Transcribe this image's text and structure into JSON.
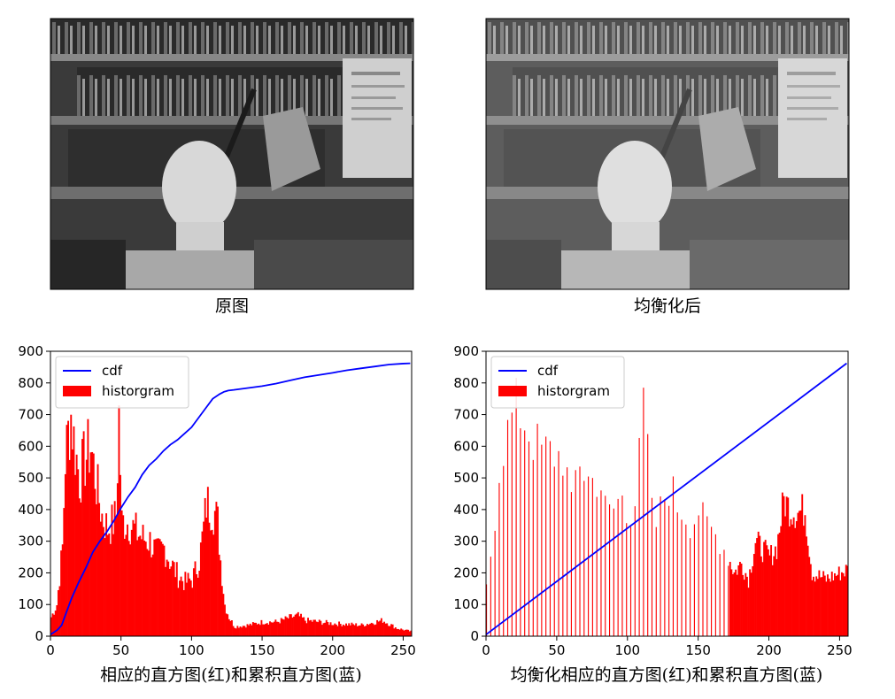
{
  "images": [
    {
      "caption": "原图",
      "note": "grayscale photo of office shelf with a plaster head and desk lamp"
    },
    {
      "caption": "均衡化后",
      "note": "histogram-equalized version of the same photo"
    }
  ],
  "colors": {
    "hist": "#ff0000",
    "cdf": "#0000ff",
    "axis": "#000000"
  },
  "chart_data": [
    {
      "type": "bar",
      "title": "",
      "xlabel": "相应的直方图(红)和累积直方图(蓝)",
      "ylabel": "",
      "xlim": [
        0,
        256
      ],
      "ylim": [
        0,
        900
      ],
      "xticks": [
        "0",
        "50",
        "100",
        "150",
        "200",
        "250"
      ],
      "yticks": [
        "0",
        "100",
        "200",
        "300",
        "400",
        "500",
        "600",
        "700",
        "800",
        "900"
      ],
      "legend": [
        "cdf",
        "historgram"
      ],
      "legend_position": "top-left",
      "histogram_anchors": [
        [
          0,
          60
        ],
        [
          4,
          100
        ],
        [
          8,
          280
        ],
        [
          10,
          560
        ],
        [
          12,
          640
        ],
        [
          14,
          700
        ],
        [
          16,
          620
        ],
        [
          20,
          500
        ],
        [
          24,
          560
        ],
        [
          28,
          600
        ],
        [
          32,
          480
        ],
        [
          36,
          380
        ],
        [
          40,
          340
        ],
        [
          44,
          360
        ],
        [
          46,
          380
        ],
        [
          48,
          700
        ],
        [
          50,
          360
        ],
        [
          55,
          360
        ],
        [
          60,
          330
        ],
        [
          65,
          310
        ],
        [
          70,
          300
        ],
        [
          75,
          260
        ],
        [
          80,
          280
        ],
        [
          85,
          230
        ],
        [
          90,
          190
        ],
        [
          95,
          170
        ],
        [
          100,
          180
        ],
        [
          105,
          240
        ],
        [
          108,
          340
        ],
        [
          110,
          420
        ],
        [
          113,
          410
        ],
        [
          116,
          390
        ],
        [
          118,
          360
        ],
        [
          120,
          240
        ],
        [
          123,
          100
        ],
        [
          126,
          60
        ],
        [
          130,
          30
        ],
        [
          140,
          35
        ],
        [
          150,
          45
        ],
        [
          160,
          45
        ],
        [
          170,
          60
        ],
        [
          175,
          65
        ],
        [
          180,
          50
        ],
        [
          200,
          40
        ],
        [
          220,
          35
        ],
        [
          235,
          50
        ],
        [
          245,
          25
        ],
        [
          255,
          15
        ]
      ],
      "cdf_line": {
        "x": [
          0,
          5,
          8,
          10,
          15,
          20,
          25,
          30,
          35,
          40,
          45,
          50,
          55,
          60,
          65,
          70,
          75,
          80,
          85,
          90,
          95,
          100,
          105,
          110,
          115,
          120,
          123,
          126,
          130,
          140,
          150,
          160,
          170,
          180,
          190,
          200,
          210,
          220,
          230,
          240,
          250,
          255
        ],
        "y": [
          5,
          20,
          35,
          60,
          120,
          170,
          215,
          265,
          300,
          330,
          365,
          405,
          440,
          470,
          510,
          540,
          560,
          585,
          605,
          620,
          640,
          660,
          690,
          720,
          750,
          765,
          772,
          776,
          778,
          784,
          790,
          798,
          808,
          818,
          825,
          832,
          840,
          846,
          852,
          858,
          861,
          862
        ]
      }
    },
    {
      "type": "bar",
      "title": "",
      "xlabel": "均衡化相应的直方图(红)和累积直方图(蓝)",
      "ylabel": "",
      "xlim": [
        0,
        256
      ],
      "ylim": [
        0,
        900
      ],
      "xticks": [
        "0",
        "50",
        "100",
        "150",
        "200",
        "250"
      ],
      "yticks": [
        "0",
        "100",
        "200",
        "300",
        "400",
        "500",
        "600",
        "700",
        "800",
        "900"
      ],
      "legend": [
        "cdf",
        "historgram"
      ],
      "legend_position": "top-left",
      "histogram_anchors": [
        [
          0,
          150
        ],
        [
          5,
          330
        ],
        [
          10,
          580
        ],
        [
          15,
          640
        ],
        [
          20,
          720
        ],
        [
          25,
          700
        ],
        [
          30,
          650
        ],
        [
          35,
          600
        ],
        [
          40,
          580
        ],
        [
          45,
          580
        ],
        [
          50,
          570
        ],
        [
          55,
          570
        ],
        [
          60,
          400
        ],
        [
          65,
          580
        ],
        [
          70,
          500
        ],
        [
          75,
          490
        ],
        [
          80,
          500
        ],
        [
          85,
          380
        ],
        [
          90,
          400
        ],
        [
          95,
          450
        ],
        [
          100,
          350
        ],
        [
          105,
          460
        ],
        [
          108,
          650
        ],
        [
          110,
          700
        ],
        [
          113,
          690
        ],
        [
          116,
          400
        ],
        [
          120,
          350
        ],
        [
          125,
          430
        ],
        [
          130,
          480
        ],
        [
          135,
          410
        ],
        [
          140,
          390
        ],
        [
          145,
          350
        ],
        [
          150,
          400
        ],
        [
          155,
          350
        ],
        [
          160,
          330
        ],
        [
          165,
          300
        ],
        [
          170,
          260
        ],
        [
          175,
          200
        ],
        [
          180,
          230
        ],
        [
          185,
          180
        ],
        [
          190,
          300
        ],
        [
          200,
          250
        ],
        [
          205,
          280
        ],
        [
          210,
          430
        ],
        [
          215,
          400
        ],
        [
          220,
          390
        ],
        [
          225,
          400
        ],
        [
          230,
          200
        ],
        [
          240,
          180
        ],
        [
          250,
          200
        ],
        [
          255,
          210
        ]
      ],
      "cdf_line": {
        "x": [
          0,
          255
        ],
        "y": [
          5,
          862
        ]
      }
    }
  ]
}
